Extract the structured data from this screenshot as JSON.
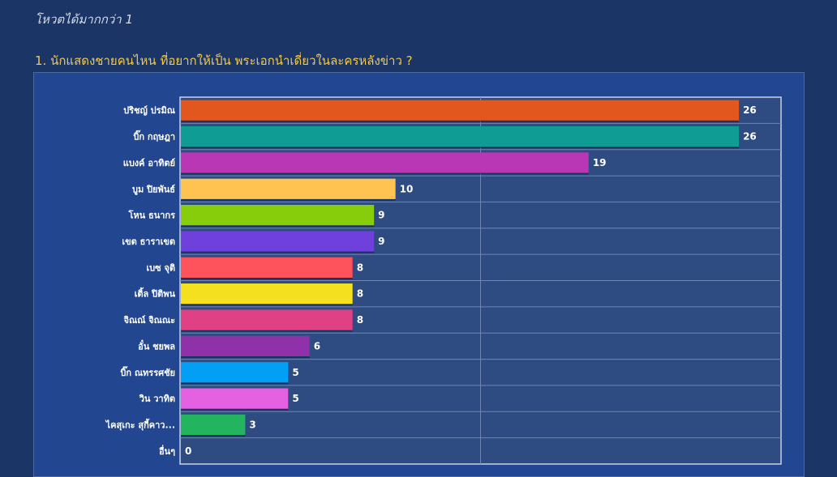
{
  "page": {
    "vote_note": "โหวตได้มากกว่า 1",
    "question": "1. นักแสดงชายคนไหน ที่อยากให้เป็น พระเอกนำเดี่ยวในละครหลังข่าว ?"
  },
  "chart_data": {
    "type": "bar",
    "orientation": "horizontal",
    "title": "",
    "xlabel": "",
    "ylabel": "",
    "xlim": [
      0,
      28
    ],
    "grid": true,
    "categories": [
      "ปริชญ์ ปรมิณ",
      "บิ๊ก กฤษฎา",
      "แบงค์ อาทิตย์",
      "บูม ปิยพันธ์",
      "โหน ธนากร",
      "เขต ธาราเขต",
      "เบซ จุติ",
      "เติ้ล ปิติพน",
      "จิณณ์ จิณณะ",
      "อั๋น ชยพล",
      "บิ๊ก ณทรรศชัย",
      "วิน วาทิต",
      "ไคสุเกะ สุกี้คาว...",
      "อื่นๆ"
    ],
    "values": [
      26,
      26,
      19,
      10,
      9,
      9,
      8,
      8,
      8,
      6,
      5,
      5,
      3,
      0
    ],
    "colors": [
      "#e2571e",
      "#0e9c93",
      "#b936b5",
      "#ffc352",
      "#87cd0c",
      "#7040dd",
      "#fe525c",
      "#f5e01f",
      "#df4184",
      "#8f32a9",
      "#039ff5",
      "#e462e1",
      "#22b45e",
      "#888888"
    ]
  }
}
